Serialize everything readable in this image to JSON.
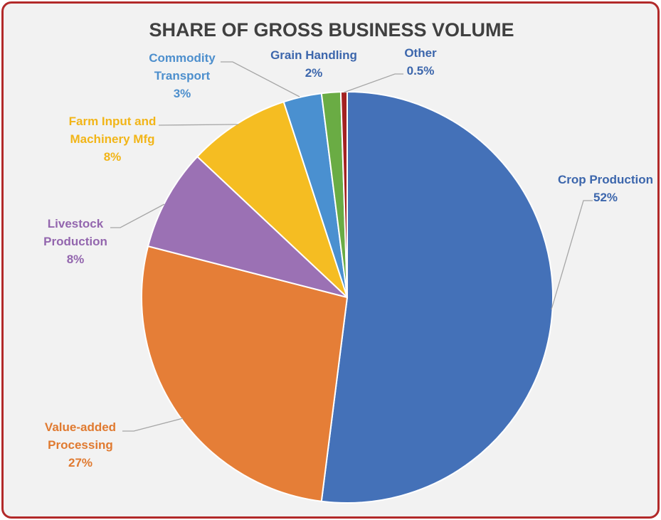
{
  "chart_data": {
    "type": "pie",
    "title": "SHARE OF GROSS BUSINESS VOLUME",
    "slices": [
      {
        "label_lines": [
          "Crop Production"
        ],
        "value": 52,
        "value_label": "52%",
        "color": "#4471b8"
      },
      {
        "label_lines": [
          "Value-added",
          "Processing"
        ],
        "value": 27,
        "value_label": "27%",
        "color": "#e57e37"
      },
      {
        "label_lines": [
          "Livestock",
          "Production"
        ],
        "value": 8,
        "value_label": "8%",
        "color": "#9b71b4"
      },
      {
        "label_lines": [
          "Farm Input and",
          "Machinery Mfg"
        ],
        "value": 8,
        "value_label": "8%",
        "color": "#f5bd22"
      },
      {
        "label_lines": [
          "Commodity",
          "Transport"
        ],
        "value": 3,
        "value_label": "3%",
        "color": "#4a90d0"
      },
      {
        "label_lines": [
          "Grain Handling"
        ],
        "value": 1.5,
        "value_label": "2%",
        "color": "#6aac44"
      },
      {
        "label_lines": [
          "Other"
        ],
        "value": 0.5,
        "value_label": "0.5%",
        "color": "#a32222"
      }
    ],
    "label_colors": [
      "#3c66ac",
      "#e07a30",
      "#9366ae",
      "#f2b518",
      "#4d8fcd",
      "#3c66ac",
      "#3c66ac"
    ],
    "title_color": "#404040",
    "border_color": "#b22a2a",
    "background": "#f2f2f2"
  }
}
